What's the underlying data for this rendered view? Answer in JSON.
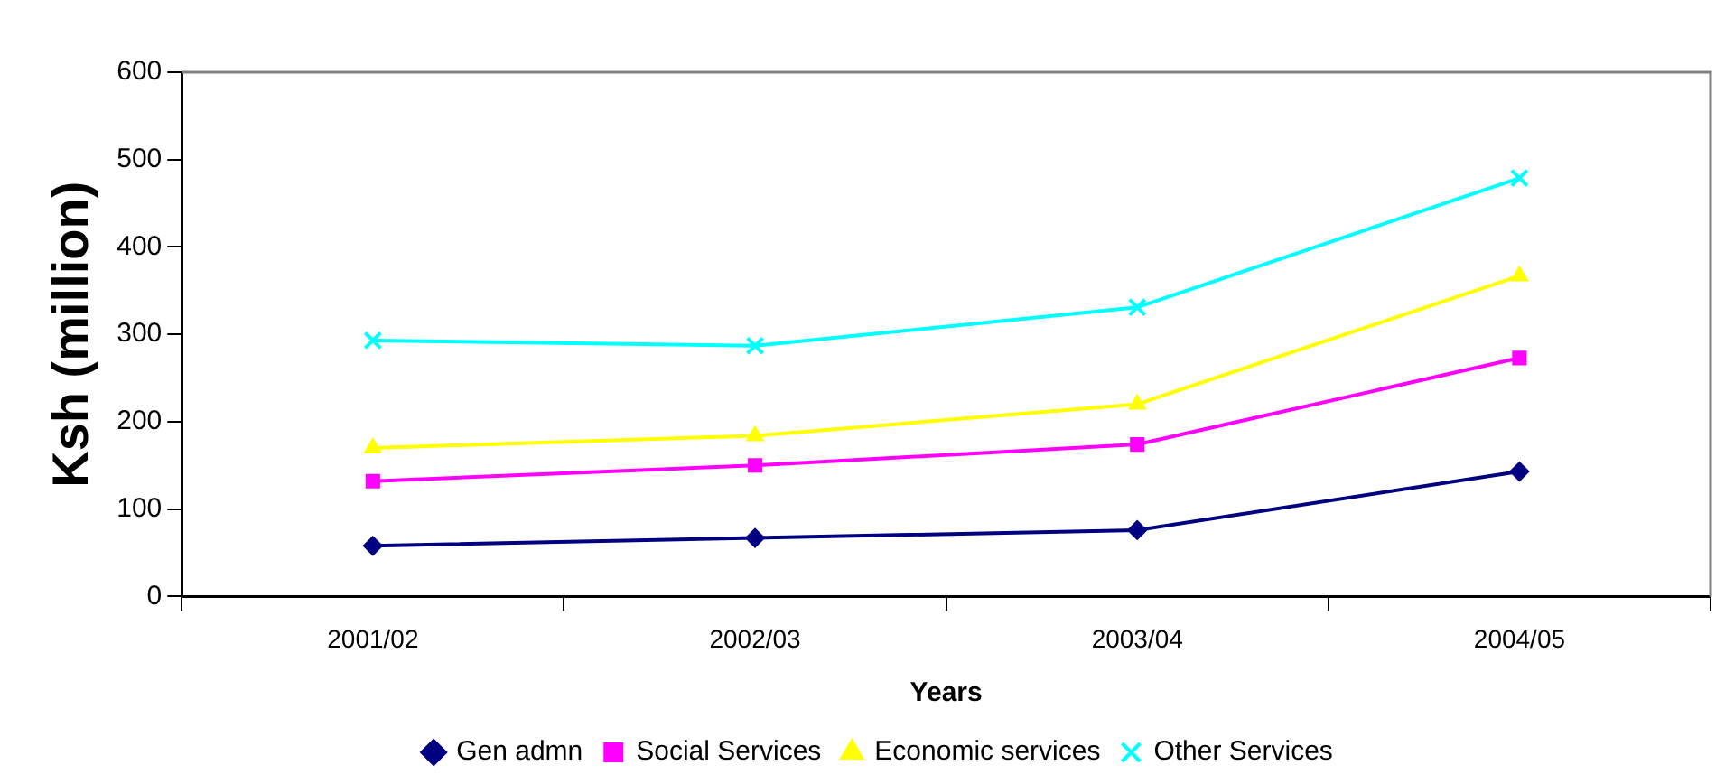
{
  "chart_data": {
    "type": "line",
    "xlabel": "Years",
    "ylabel": "Ksh (million)",
    "categories": [
      "2001/02",
      "2002/03",
      "2003/04",
      "2004/05"
    ],
    "series": [
      {
        "name": "Gen admn",
        "color": "#000080",
        "marker": "diamond",
        "values": [
          58,
          67,
          76,
          143
        ]
      },
      {
        "name": "Social Services",
        "color": "#ff00ff",
        "marker": "square",
        "values": [
          132,
          150,
          174,
          273
        ]
      },
      {
        "name": "Economic services",
        "color": "#ffff00",
        "marker": "triangle",
        "values": [
          170,
          184,
          220,
          367
        ]
      },
      {
        "name": "Other Services",
        "color": "#00ffff",
        "marker": "cross",
        "values": [
          293,
          287,
          331,
          479
        ]
      }
    ],
    "ylim": [
      0,
      600
    ],
    "yticks": [
      0,
      100,
      200,
      300,
      400,
      500,
      600
    ],
    "grid": false,
    "legend": "bottom",
    "line_style": "solid"
  }
}
